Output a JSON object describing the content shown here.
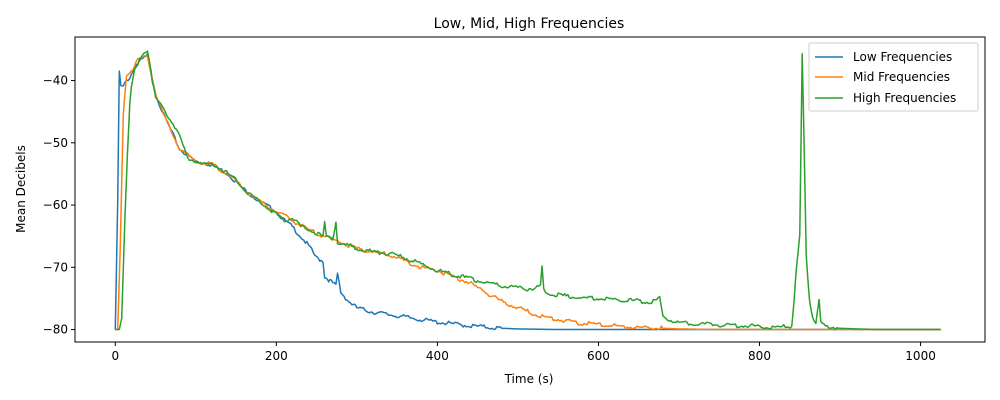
{
  "chart_data": {
    "type": "line",
    "title": "Low, Mid, High Frequencies",
    "xlabel": "Time (s)",
    "ylabel": "Mean Decibels",
    "xlim": [
      -50,
      1080
    ],
    "ylim": [
      -82,
      -33
    ],
    "xticks": [
      0,
      200,
      400,
      600,
      800,
      1000
    ],
    "yticks": [
      -80,
      -70,
      -60,
      -50,
      -40
    ],
    "grid": false,
    "legend_position": "upper-right",
    "series": [
      {
        "name": "Low Frequencies",
        "color": "#1f77b4",
        "x": [
          0,
          3,
          5,
          7,
          10,
          14,
          18,
          22,
          26,
          30,
          40,
          50,
          60,
          80,
          100,
          120,
          140,
          160,
          180,
          200,
          210,
          220,
          230,
          240,
          250,
          258,
          260,
          265,
          270,
          274,
          276,
          280,
          290,
          300,
          320,
          340,
          360,
          380,
          400,
          420,
          440,
          460,
          480,
          500,
          550,
          600,
          650,
          700,
          750,
          800,
          900,
          1000,
          1025
        ],
        "y": [
          -80,
          -60,
          -38.5,
          -41,
          -41,
          -40,
          -39.5,
          -38.5,
          -37.5,
          -37,
          -36,
          -42,
          -45.5,
          -51,
          -53,
          -53.5,
          -55,
          -57.5,
          -59.5,
          -61,
          -62.5,
          -63.5,
          -65,
          -66.5,
          -68.5,
          -69,
          -71.5,
          -72,
          -72.5,
          -73,
          -71,
          -74,
          -75.5,
          -76.5,
          -77.2,
          -77.6,
          -78,
          -78.4,
          -78.8,
          -79.1,
          -79.4,
          -79.6,
          -79.8,
          -79.9,
          -80,
          -80,
          -80,
          -80,
          -80,
          -80,
          -80,
          -80,
          -80
        ]
      },
      {
        "name": "Mid Frequencies",
        "color": "#ff7f0e",
        "x": [
          0,
          3,
          6,
          10,
          14,
          18,
          22,
          26,
          30,
          40,
          50,
          60,
          80,
          100,
          120,
          140,
          160,
          180,
          200,
          220,
          240,
          260,
          270,
          280,
          300,
          320,
          340,
          360,
          380,
          400,
          420,
          440,
          460,
          480,
          500,
          520,
          540,
          560,
          580,
          600,
          620,
          640,
          660,
          680,
          700,
          750,
          800,
          850,
          900,
          950,
          1000,
          1025
        ],
        "y": [
          -80,
          -80,
          -68,
          -45,
          -39,
          -38.5,
          -38,
          -37,
          -36.5,
          -36,
          -42,
          -45.5,
          -51,
          -53,
          -53.5,
          -55,
          -57.5,
          -59.5,
          -61,
          -62.5,
          -64,
          -65,
          -65.5,
          -66,
          -67,
          -67.5,
          -68,
          -69,
          -70,
          -70.5,
          -71.5,
          -72.5,
          -74,
          -75.5,
          -76.5,
          -77.5,
          -78.2,
          -78.6,
          -79,
          -79.2,
          -79.4,
          -79.6,
          -79.7,
          -79.8,
          -79.9,
          -80,
          -80,
          -80,
          -80,
          -80,
          -80,
          -80
        ]
      },
      {
        "name": "High Frequencies",
        "color": "#2ca02c",
        "x": [
          0,
          5,
          8,
          12,
          15,
          18,
          20,
          24,
          28,
          32,
          36,
          40,
          44,
          46,
          50,
          60,
          70,
          80,
          90,
          100,
          110,
          120,
          130,
          140,
          150,
          160,
          170,
          180,
          190,
          200,
          210,
          220,
          225,
          230,
          240,
          250,
          258,
          260,
          262,
          270,
          274,
          276,
          278,
          290,
          300,
          320,
          340,
          360,
          380,
          400,
          420,
          440,
          460,
          480,
          500,
          520,
          528,
          530,
          532,
          536,
          540,
          560,
          580,
          600,
          620,
          640,
          660,
          672,
          676,
          680,
          690,
          700,
          720,
          740,
          760,
          780,
          800,
          820,
          840,
          843,
          846,
          850,
          853,
          855,
          858,
          862,
          866,
          870,
          874,
          876,
          880,
          890,
          900,
          920,
          950,
          1000,
          1025
        ],
        "y": [
          -80,
          -80,
          -78,
          -62,
          -52,
          -44,
          -41,
          -38.5,
          -37.5,
          -36,
          -35.5,
          -35,
          -38,
          -40,
          -43,
          -44.5,
          -46.5,
          -49,
          -52.5,
          -53,
          -53.5,
          -53.5,
          -54,
          -55,
          -56,
          -57.5,
          -58.5,
          -59.5,
          -60.5,
          -61.5,
          -62.5,
          -62,
          -62.5,
          -63.5,
          -64,
          -64.5,
          -65,
          -63,
          -65,
          -65.5,
          -62.5,
          -66,
          -66.2,
          -66.5,
          -67,
          -67.5,
          -67.8,
          -68.5,
          -69.5,
          -70.5,
          -71.2,
          -71.8,
          -72.5,
          -73,
          -73.3,
          -73.5,
          -73,
          -70,
          -73.5,
          -74,
          -74.3,
          -74.6,
          -74.9,
          -75,
          -75.2,
          -75.3,
          -75.5,
          -75.5,
          -74.8,
          -78,
          -78.5,
          -79,
          -79,
          -79.2,
          -79.3,
          -79.4,
          -79.5,
          -79.6,
          -79.5,
          -75,
          -70,
          -65,
          -36,
          -48,
          -68,
          -75,
          -78,
          -79,
          -75.5,
          -79,
          -79.4,
          -79.6,
          -79.8,
          -79.9,
          -80,
          -80,
          -80
        ]
      }
    ]
  }
}
